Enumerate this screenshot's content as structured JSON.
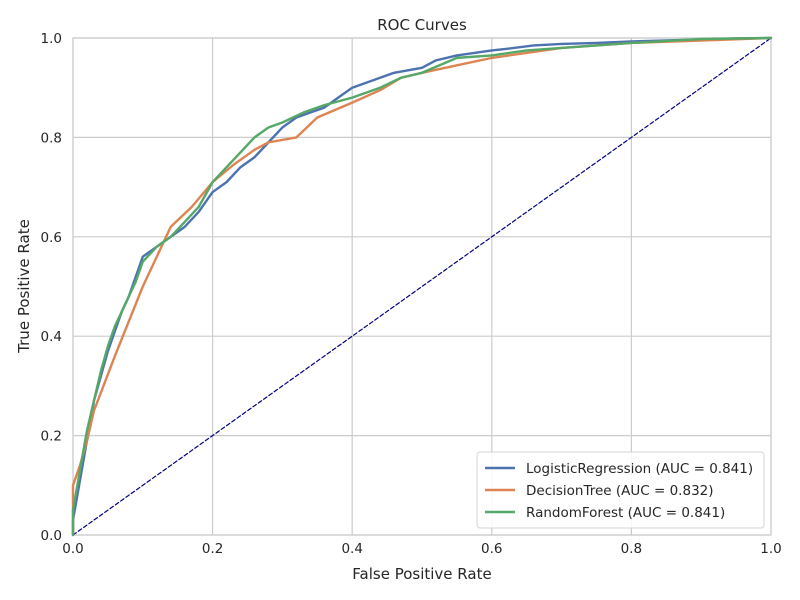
{
  "chart_data": {
    "type": "line",
    "title": "ROC Curves",
    "xlabel": "False Positive Rate",
    "ylabel": "True Positive Rate",
    "xlim": [
      0,
      1
    ],
    "ylim": [
      0,
      1
    ],
    "xticks": [
      "0.0",
      "0.2",
      "0.4",
      "0.6",
      "0.8",
      "1.0"
    ],
    "yticks": [
      "0.0",
      "0.2",
      "0.4",
      "0.6",
      "0.8",
      "1.0"
    ],
    "grid": true,
    "legend_position": "lower-right",
    "series": [
      {
        "name": "LogisticRegression (AUC = 0.841)",
        "color": "#4c72b0",
        "x": [
          0,
          0,
          0.005,
          0.01,
          0.015,
          0.02,
          0.025,
          0.03,
          0.04,
          0.05,
          0.06,
          0.07,
          0.08,
          0.09,
          0.1,
          0.12,
          0.14,
          0.16,
          0.18,
          0.2,
          0.22,
          0.24,
          0.26,
          0.28,
          0.3,
          0.32,
          0.34,
          0.36,
          0.38,
          0.4,
          0.42,
          0.44,
          0.46,
          0.48,
          0.5,
          0.52,
          0.55,
          0.6,
          0.62,
          0.66,
          0.7,
          0.75,
          0.8,
          0.85,
          0.9,
          0.95,
          1.0
        ],
        "y": [
          0,
          0.03,
          0.07,
          0.11,
          0.15,
          0.19,
          0.22,
          0.27,
          0.32,
          0.37,
          0.41,
          0.45,
          0.48,
          0.52,
          0.56,
          0.58,
          0.6,
          0.62,
          0.65,
          0.69,
          0.71,
          0.74,
          0.76,
          0.79,
          0.82,
          0.84,
          0.85,
          0.86,
          0.88,
          0.9,
          0.91,
          0.92,
          0.93,
          0.935,
          0.94,
          0.955,
          0.965,
          0.975,
          0.978,
          0.985,
          0.988,
          0.99,
          0.993,
          0.995,
          0.997,
          0.999,
          1.0
        ]
      },
      {
        "name": "DecisionTree (AUC = 0.832)",
        "color": "#dd8452",
        "x": [
          0,
          0,
          0.01,
          0.02,
          0.03,
          0.06,
          0.1,
          0.14,
          0.17,
          0.2,
          0.23,
          0.26,
          0.28,
          0.32,
          0.35,
          0.4,
          0.44,
          0.47,
          0.5,
          0.55,
          0.6,
          0.7,
          0.8,
          0.9,
          1.0
        ],
        "y": [
          0,
          0.1,
          0.14,
          0.19,
          0.25,
          0.36,
          0.5,
          0.62,
          0.66,
          0.71,
          0.745,
          0.775,
          0.79,
          0.8,
          0.84,
          0.87,
          0.895,
          0.92,
          0.93,
          0.945,
          0.96,
          0.98,
          0.99,
          0.995,
          1.0
        ]
      },
      {
        "name": "RandomForest (AUC = 0.841)",
        "color": "#55a868",
        "x": [
          0,
          0,
          0.005,
          0.01,
          0.015,
          0.02,
          0.03,
          0.04,
          0.05,
          0.06,
          0.07,
          0.08,
          0.09,
          0.1,
          0.12,
          0.14,
          0.16,
          0.18,
          0.2,
          0.22,
          0.24,
          0.26,
          0.28,
          0.3,
          0.33,
          0.36,
          0.4,
          0.44,
          0.47,
          0.5,
          0.55,
          0.6,
          0.65,
          0.7,
          0.75,
          0.8,
          0.9,
          1.0
        ],
        "y": [
          0,
          0.05,
          0.09,
          0.13,
          0.17,
          0.21,
          0.27,
          0.33,
          0.38,
          0.42,
          0.45,
          0.48,
          0.51,
          0.55,
          0.58,
          0.6,
          0.63,
          0.66,
          0.71,
          0.74,
          0.77,
          0.8,
          0.82,
          0.83,
          0.85,
          0.865,
          0.88,
          0.9,
          0.92,
          0.93,
          0.96,
          0.965,
          0.975,
          0.98,
          0.985,
          0.99,
          0.998,
          1.0
        ]
      },
      {
        "name": "",
        "color": "#000080",
        "dashed": true,
        "x": [
          0,
          1
        ],
        "y": [
          0,
          1
        ]
      }
    ]
  }
}
